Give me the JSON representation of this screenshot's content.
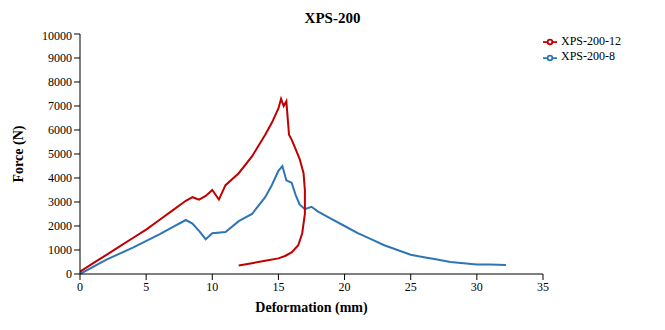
{
  "chart_data": {
    "type": "line",
    "title": "XPS-200",
    "x_label": "Deformation (mm)",
    "y_label": "Force (N)",
    "xlim": [
      0,
      35
    ],
    "xticks": [
      0,
      5,
      10,
      15,
      20,
      25,
      30,
      35
    ],
    "ylim": [
      0,
      10000
    ],
    "yticks": [
      0,
      1000,
      2000,
      3000,
      4000,
      5000,
      6000,
      7000,
      8000,
      9000,
      10000
    ],
    "grid": false,
    "legend": "upper right",
    "series": [
      {
        "name": "XPS-200-8",
        "color": "#2e75b6",
        "x": [
          0,
          2,
          4,
          6,
          7,
          8,
          8.5,
          9,
          9.5,
          10,
          11,
          12,
          13,
          14,
          14.5,
          15,
          15.3,
          15.6,
          16,
          16.3,
          16.6,
          17,
          17.5,
          18,
          19,
          20,
          21,
          22,
          23,
          24,
          25,
          26,
          27,
          28,
          29,
          30,
          31,
          32.2
        ],
        "values": [
          0,
          600,
          1100,
          1650,
          1950,
          2250,
          2100,
          1800,
          1450,
          1700,
          1750,
          2200,
          2500,
          3200,
          3700,
          4300,
          4500,
          3900,
          3800,
          3300,
          2900,
          2700,
          2800,
          2600,
          2300,
          2000,
          1700,
          1450,
          1200,
          1000,
          800,
          700,
          600,
          500,
          450,
          400,
          400,
          380
        ]
      },
      {
        "name": "XPS-200-12",
        "color": "#c00000",
        "x": [
          0,
          1,
          2,
          3,
          4,
          5,
          6,
          7,
          8,
          8.5,
          9,
          9.5,
          10,
          10.5,
          11,
          12,
          13,
          14,
          14.5,
          15,
          15.2,
          15.4,
          15.6,
          15.8,
          16,
          16.3,
          16.6,
          16.9,
          17,
          17,
          16.8,
          16.5,
          16,
          15.5,
          15,
          14,
          13,
          12
        ],
        "values": [
          100,
          450,
          800,
          1150,
          1500,
          1850,
          2250,
          2650,
          3050,
          3200,
          3100,
          3250,
          3500,
          3100,
          3700,
          4200,
          4900,
          5800,
          6300,
          6900,
          7300,
          7000,
          7200,
          5800,
          5600,
          5200,
          4800,
          4200,
          3500,
          2500,
          1700,
          1200,
          900,
          750,
          650,
          550,
          450,
          350
        ]
      }
    ]
  }
}
